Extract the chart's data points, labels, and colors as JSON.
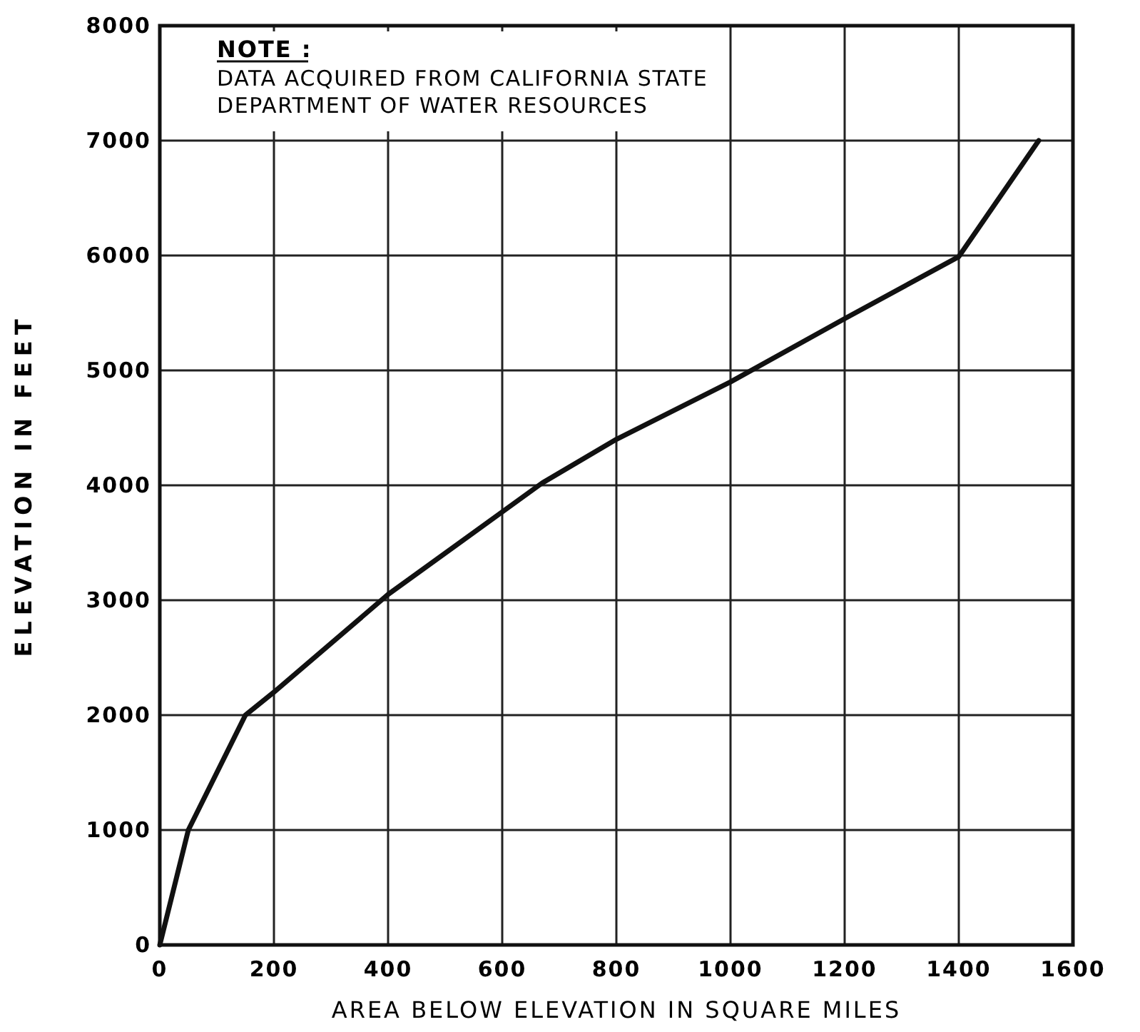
{
  "chart_data": {
    "type": "line",
    "xlabel": "AREA BELOW ELEVATION IN SQUARE MILES",
    "ylabel": "ELEVATION IN FEET",
    "annotations": [
      "NOTE :",
      "DATA ACQUIRED FROM CALIFORNIA STATE DEPARTMENT OF WATER RESOURCES"
    ],
    "series": [
      {
        "color": "#111111",
        "x": [
          0,
          50,
          150,
          200,
          400,
          670,
          800,
          1000,
          1200,
          1400,
          1540
        ],
        "values": [
          0,
          1000,
          2000,
          2200,
          3050,
          4020,
          4400,
          4900,
          5450,
          5990,
          7000
        ]
      }
    ],
    "xlim": [
      0,
      1600
    ],
    "xticks": [
      0,
      200,
      400,
      600,
      800,
      1000,
      1200,
      1400,
      1600
    ],
    "ylim": [
      0,
      8000
    ],
    "yticks": [
      0,
      1000,
      2000,
      3000,
      4000,
      5000,
      6000,
      7000,
      8000
    ],
    "grid": true,
    "marker": "none",
    "line_style": "solid"
  }
}
